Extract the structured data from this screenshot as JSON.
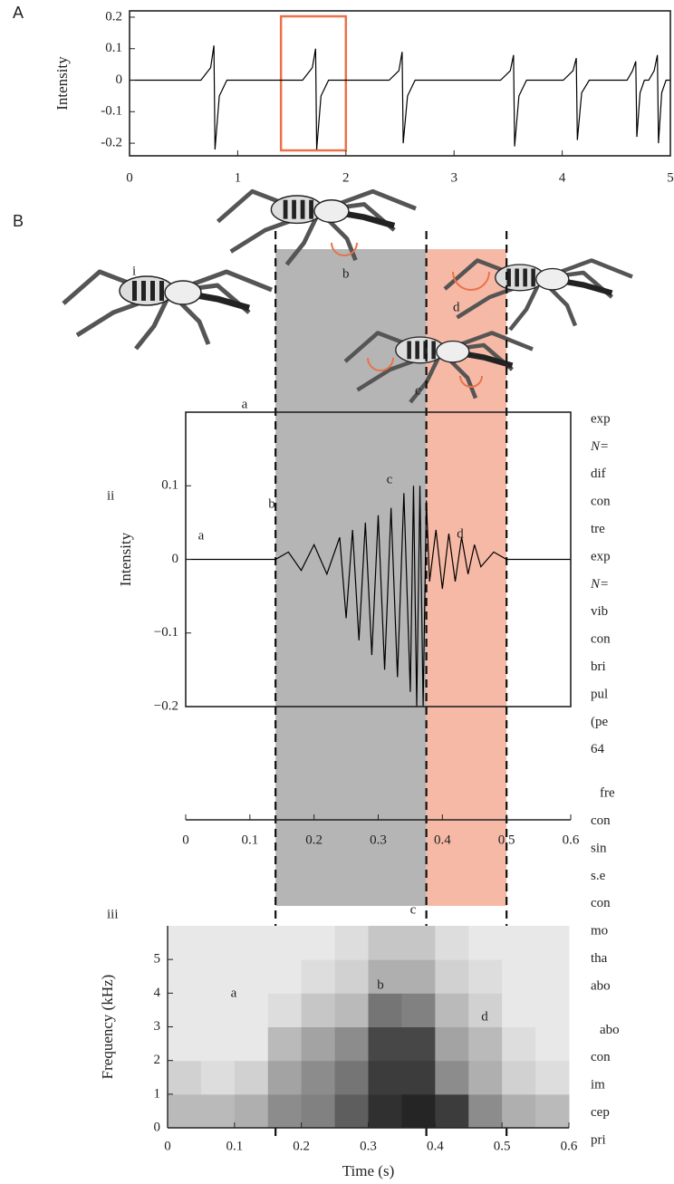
{
  "chart_data": [
    {
      "type": "line",
      "panel": "A",
      "ylabel": "Intensity",
      "color": "#000000",
      "xlim": [
        0,
        5
      ],
      "ylim": [
        -0.24,
        0.22
      ],
      "xticks": [
        0,
        1,
        2,
        3,
        4,
        5
      ],
      "yticks": [
        0.2,
        0.1,
        0,
        -0.1,
        -0.2
      ],
      "highlight": {
        "start": 1.4,
        "end": 2.0,
        "color": "#e8734a"
      },
      "x": [
        0,
        0.66,
        0.75,
        0.78,
        0.79,
        0.83,
        0.9,
        1.6,
        1.69,
        1.72,
        1.73,
        1.77,
        1.84,
        2.4,
        2.49,
        2.52,
        2.53,
        2.57,
        2.64,
        3.43,
        3.52,
        3.55,
        3.56,
        3.6,
        3.67,
        4.01,
        4.1,
        4.13,
        4.14,
        4.18,
        4.25,
        4.6,
        4.65,
        4.68,
        4.69,
        4.72,
        4.76,
        4.8,
        4.85,
        4.88,
        4.89,
        4.92,
        4.96,
        5
      ],
      "values": [
        0,
        0,
        0.04,
        0.11,
        -0.22,
        -0.05,
        0,
        0,
        0.04,
        0.1,
        -0.22,
        -0.05,
        0,
        0,
        0.03,
        0.09,
        -0.2,
        -0.05,
        0,
        0,
        0.03,
        0.08,
        -0.21,
        -0.05,
        0,
        0,
        0.03,
        0.07,
        -0.19,
        -0.04,
        0,
        0,
        0.03,
        0.06,
        -0.18,
        -0.04,
        0,
        0,
        0.03,
        0.08,
        -0.2,
        -0.04,
        0,
        0
      ]
    },
    {
      "type": "line",
      "panel": "ii",
      "ylabel": "Intensity",
      "color": "#000000",
      "xlim": [
        0,
        0.6
      ],
      "ylim": [
        -0.2,
        0.2
      ],
      "xticks": [
        0,
        0.1,
        0.2,
        0.3,
        0.4,
        0.5,
        0.6
      ],
      "yticks": [
        0.1,
        0,
        {
          "value": -0.1,
          "label": "−0.1"
        },
        {
          "value": -0.2,
          "label": "−0.2"
        }
      ],
      "regions": [
        {
          "start": 0.14,
          "end": 0.375,
          "color": "#b5b5b5"
        },
        {
          "start": 0.375,
          "end": 0.5,
          "color": "#f6b9a6"
        }
      ],
      "annotations": [
        "a",
        "a",
        "b",
        "c",
        "d"
      ],
      "x": [
        0,
        0.1,
        0.14,
        0.16,
        0.18,
        0.2,
        0.22,
        0.24,
        0.25,
        0.26,
        0.27,
        0.28,
        0.29,
        0.3,
        0.31,
        0.32,
        0.33,
        0.34,
        0.35,
        0.355,
        0.36,
        0.365,
        0.37,
        0.375,
        0.38,
        0.39,
        0.4,
        0.41,
        0.42,
        0.43,
        0.44,
        0.45,
        0.46,
        0.48,
        0.5,
        0.6
      ],
      "values": [
        0,
        0,
        0,
        0.01,
        -0.015,
        0.02,
        -0.02,
        0.03,
        -0.08,
        0.04,
        -0.11,
        0.05,
        -0.13,
        0.06,
        -0.15,
        0.07,
        -0.16,
        0.09,
        -0.18,
        0.1,
        -0.2,
        0.1,
        -0.2,
        0.08,
        -0.03,
        0.04,
        -0.04,
        0.035,
        -0.03,
        0.03,
        -0.02,
        0.02,
        -0.01,
        0.01,
        0,
        0
      ]
    },
    {
      "type": "heatmap",
      "panel": "iii",
      "xlabel": "Time (s)",
      "ylabel": "Frequency (kHz)",
      "xlim": [
        0,
        0.6
      ],
      "ylim": [
        0,
        6
      ],
      "xticks": [
        0,
        0.1,
        0.2,
        0.3,
        0.4,
        0.5,
        0.6
      ],
      "yticks": [
        0,
        1,
        2,
        3,
        4,
        5
      ],
      "annotations": [
        "a",
        "b",
        "c",
        "d"
      ],
      "xbins": [
        0,
        0.05,
        0.1,
        0.15,
        0.2,
        0.25,
        0.3,
        0.35,
        0.4,
        0.45,
        0.5,
        0.55,
        0.6
      ],
      "ybins": [
        0,
        1,
        2,
        3,
        4,
        5,
        6
      ],
      "values": [
        [
          0.3,
          0.3,
          0.35,
          0.5,
          0.55,
          0.7,
          0.9,
          0.95,
          0.85,
          0.5,
          0.35,
          0.3
        ],
        [
          0.2,
          0.15,
          0.2,
          0.4,
          0.5,
          0.6,
          0.85,
          0.85,
          0.5,
          0.35,
          0.2,
          0.15
        ],
        [
          0.1,
          0.1,
          0.1,
          0.3,
          0.4,
          0.5,
          0.8,
          0.8,
          0.4,
          0.3,
          0.15,
          0.1
        ],
        [
          0.1,
          0.1,
          0.1,
          0.15,
          0.25,
          0.3,
          0.6,
          0.55,
          0.3,
          0.2,
          0.1,
          0.1
        ],
        [
          0.1,
          0.1,
          0.1,
          0.1,
          0.15,
          0.2,
          0.35,
          0.35,
          0.2,
          0.15,
          0.1,
          0.1
        ],
        [
          0.1,
          0.1,
          0.1,
          0.1,
          0.1,
          0.15,
          0.25,
          0.25,
          0.15,
          0.1,
          0.1,
          0.1
        ]
      ]
    }
  ],
  "panel_labels": [
    "B",
    "i"
  ],
  "spider_labels": [
    "b",
    "d",
    "c"
  ],
  "side_text": [
    [
      "exp",
      "N=",
      "dif",
      "con",
      "tre",
      "exp",
      "N=",
      "vib",
      "con",
      "bri",
      "pul",
      "(pe",
      "64"
    ],
    [
      "fre",
      "con",
      "sin",
      "s.e",
      "con",
      "mo",
      "tha",
      "abo"
    ],
    [
      "abo",
      "con",
      "im",
      "cep",
      "pri"
    ]
  ]
}
